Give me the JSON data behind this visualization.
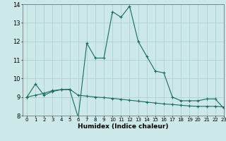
{
  "line1_x": [
    0,
    1,
    2,
    3,
    4,
    5,
    6,
    7,
    8,
    9,
    10,
    11,
    12,
    13,
    14,
    15,
    16,
    17,
    18,
    19,
    20,
    21,
    22,
    23
  ],
  "line1_y": [
    9.0,
    9.7,
    9.1,
    9.3,
    9.4,
    9.4,
    7.9,
    11.9,
    11.1,
    11.1,
    13.6,
    13.3,
    13.9,
    12.0,
    11.2,
    10.4,
    10.3,
    9.0,
    8.8,
    8.8,
    8.8,
    8.9,
    8.9,
    8.4
  ],
  "line2_x": [
    0,
    1,
    2,
    3,
    4,
    5,
    6,
    7,
    8,
    9,
    10,
    11,
    12,
    13,
    14,
    15,
    16,
    17,
    18,
    19,
    20,
    21,
    22,
    23
  ],
  "line2_y": [
    9.0,
    9.1,
    9.2,
    9.35,
    9.4,
    9.42,
    9.1,
    9.05,
    9.0,
    8.97,
    8.93,
    8.88,
    8.83,
    8.78,
    8.73,
    8.68,
    8.63,
    8.6,
    8.56,
    8.52,
    8.5,
    8.5,
    8.5,
    8.47
  ],
  "line_color": "#1a6b5a",
  "bg_color": "#cce8e8",
  "grid_color": "#aacece",
  "xlabel": "Humidex (Indice chaleur)",
  "ylim": [
    8,
    14
  ],
  "xlim": [
    -0.5,
    23
  ],
  "yticks": [
    8,
    9,
    10,
    11,
    12,
    13,
    14
  ],
  "xticks": [
    0,
    1,
    2,
    3,
    4,
    5,
    6,
    7,
    8,
    9,
    10,
    11,
    12,
    13,
    14,
    15,
    16,
    17,
    18,
    19,
    20,
    21,
    22,
    23
  ]
}
